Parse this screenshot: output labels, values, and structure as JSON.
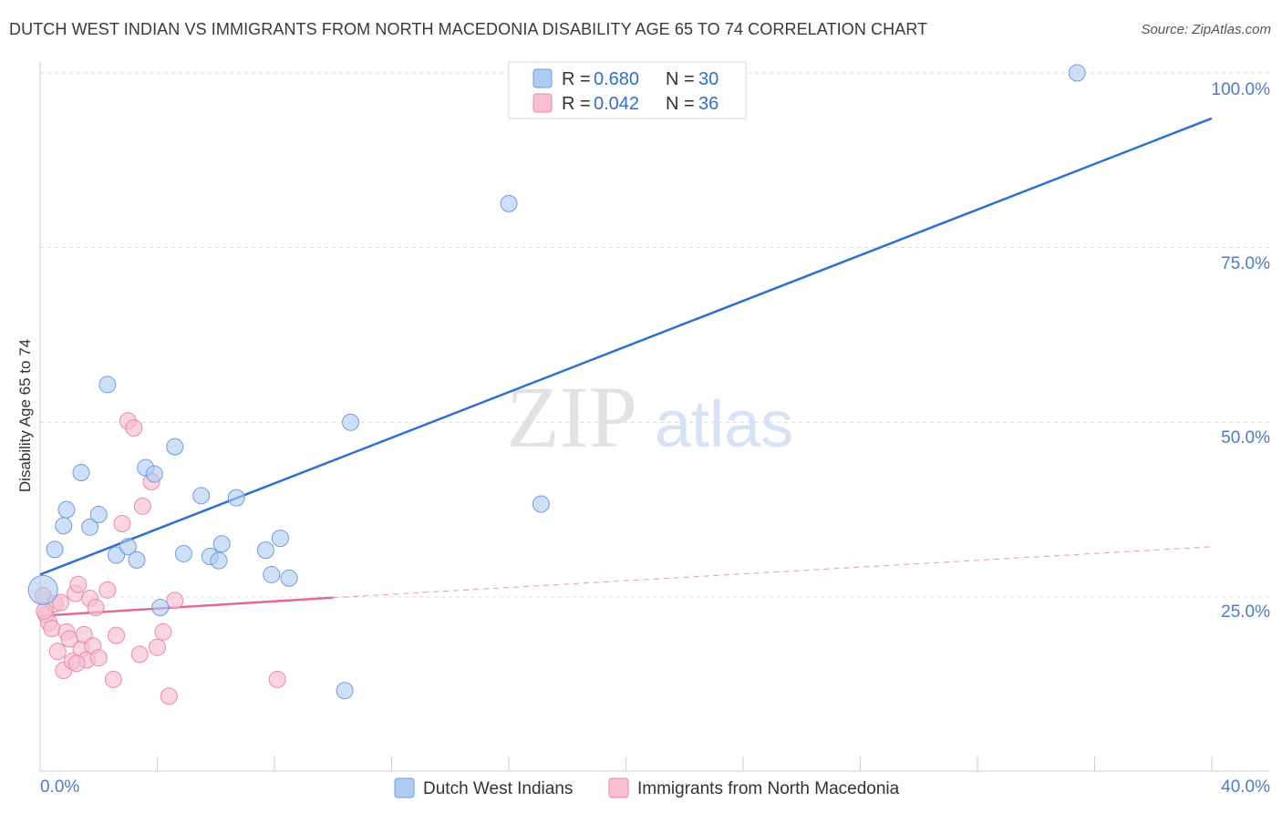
{
  "header": {
    "title": "DUTCH WEST INDIAN VS IMMIGRANTS FROM NORTH MACEDONIA DISABILITY AGE 65 TO 74 CORRELATION CHART",
    "source": "Source: ZipAtlas.com"
  },
  "watermark": {
    "zip": "ZIP",
    "atlas": "atlas"
  },
  "colors": {
    "blue_fill": "#aecbf2",
    "blue_stroke": "#6f9be0",
    "blue_line": "#2f6fcf",
    "pink_fill": "#f7bfd0",
    "pink_stroke": "#e88aa8",
    "pink_line": "#e06a94",
    "label_blue": "#4a7bd0",
    "grid": "#dcdcdc"
  },
  "legend_box": {
    "rows": [
      {
        "r_label": "R = ",
        "r_value": "0.680",
        "n_label": "N = ",
        "n_value": "30"
      },
      {
        "r_label": "R = ",
        "r_value": "0.042",
        "n_label": "N = ",
        "n_value": "36"
      }
    ]
  },
  "chart_data": {
    "type": "scatter",
    "title": "DUTCH WEST INDIAN VS IMMIGRANTS FROM NORTH MACEDONIA DISABILITY AGE 65 TO 74 CORRELATION CHART",
    "xlabel": "",
    "ylabel": "Disability Age 65 to 74",
    "xlim": [
      0,
      40
    ],
    "ylim": [
      0,
      105
    ],
    "x_tick_labels": [
      "0.0%",
      "40.0%"
    ],
    "y_tick_labels": [
      "25.0%",
      "50.0%",
      "75.0%",
      "100.0%"
    ],
    "y_ticks": [
      25,
      50,
      75,
      100
    ],
    "grid": true,
    "series": [
      {
        "name": "Dutch West Indians",
        "R": 0.68,
        "N": 30,
        "points": [
          [
            0.1,
            26.0
          ],
          [
            0.5,
            31.8
          ],
          [
            0.8,
            35.2
          ],
          [
            0.9,
            37.5
          ],
          [
            1.4,
            42.8
          ],
          [
            1.7,
            35.0
          ],
          [
            2.0,
            36.8
          ],
          [
            2.3,
            55.4
          ],
          [
            2.6,
            31.0
          ],
          [
            3.0,
            32.2
          ],
          [
            3.3,
            30.3
          ],
          [
            3.6,
            43.5
          ],
          [
            3.9,
            42.6
          ],
          [
            4.1,
            23.5
          ],
          [
            4.6,
            46.5
          ],
          [
            4.9,
            31.2
          ],
          [
            5.5,
            39.5
          ],
          [
            5.8,
            30.8
          ],
          [
            6.1,
            30.2
          ],
          [
            6.2,
            32.6
          ],
          [
            6.7,
            39.2
          ],
          [
            7.7,
            31.7
          ],
          [
            7.9,
            28.2
          ],
          [
            8.2,
            33.4
          ],
          [
            8.5,
            27.7
          ],
          [
            10.4,
            11.6
          ],
          [
            10.6,
            50.0
          ],
          [
            16.0,
            81.3
          ],
          [
            17.1,
            38.3
          ],
          [
            35.4,
            100.0
          ]
        ],
        "trend": {
          "x": [
            0,
            40
          ],
          "y": [
            28.2,
            93.5
          ]
        }
      },
      {
        "name": "Immigrants from North Macedonia",
        "R": 0.042,
        "N": 36,
        "points": [
          [
            0.1,
            25.2
          ],
          [
            0.2,
            22.5
          ],
          [
            0.3,
            21.3
          ],
          [
            0.4,
            20.5
          ],
          [
            0.5,
            24.0
          ],
          [
            0.6,
            17.2
          ],
          [
            0.8,
            14.5
          ],
          [
            0.9,
            20.0
          ],
          [
            1.0,
            19.0
          ],
          [
            1.1,
            15.8
          ],
          [
            1.2,
            25.5
          ],
          [
            1.3,
            26.8
          ],
          [
            1.4,
            17.5
          ],
          [
            1.5,
            19.6
          ],
          [
            1.6,
            16.0
          ],
          [
            1.7,
            24.8
          ],
          [
            1.8,
            18.0
          ],
          [
            1.9,
            23.5
          ],
          [
            2.0,
            16.3
          ],
          [
            2.3,
            26.0
          ],
          [
            2.5,
            13.2
          ],
          [
            2.6,
            19.5
          ],
          [
            2.8,
            35.5
          ],
          [
            3.0,
            50.2
          ],
          [
            3.2,
            49.2
          ],
          [
            3.4,
            16.8
          ],
          [
            3.5,
            38.0
          ],
          [
            3.8,
            41.5
          ],
          [
            4.0,
            17.8
          ],
          [
            4.2,
            20.0
          ],
          [
            4.4,
            10.8
          ],
          [
            4.6,
            24.5
          ],
          [
            8.1,
            13.2
          ],
          [
            0.15,
            23.0
          ],
          [
            1.25,
            15.5
          ],
          [
            0.7,
            24.2
          ]
        ],
        "trend_solid": {
          "x": [
            0,
            10
          ],
          "y": [
            22.3,
            24.9
          ]
        },
        "trend_dashed": {
          "x": [
            10,
            40
          ],
          "y": [
            24.9,
            32.2
          ]
        }
      }
    ],
    "legend": [
      "Dutch West Indians",
      "Immigrants from North Macedonia"
    ]
  }
}
